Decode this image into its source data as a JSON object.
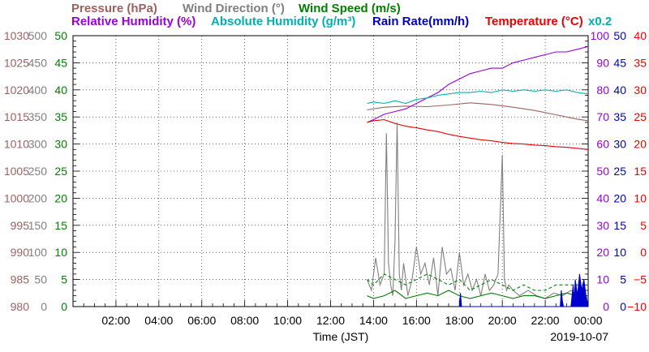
{
  "chart_data": {
    "type": "line",
    "date": "2019-10-07",
    "xlabel": "Time (JST)",
    "x_ticks": [
      "02:00",
      "04:00",
      "06:00",
      "08:00",
      "10:00",
      "12:00",
      "14:00",
      "16:00",
      "18:00",
      "20:00",
      "22:00",
      "00:00"
    ],
    "legend_row1": [
      {
        "text": "Pressure (hPa)",
        "color": "#a06060"
      },
      {
        "text": "Wind Direction (°)",
        "color": "#808080"
      },
      {
        "text": "Wind Speed (m/s)",
        "color": "#008000"
      }
    ],
    "legend_row2": [
      {
        "text": "Relative Humidity (%)",
        "color": "#9900dd"
      },
      {
        "text": "Absolute Humidity (g/m³)",
        "color": "#00b0b0"
      },
      {
        "text": "Rain Rate(mm/h)",
        "color": "#0000cc"
      },
      {
        "text": "Temperature (°C)",
        "color": "#ee0000"
      }
    ],
    "abs_humidity_scale_note": "x0.2",
    "axes": {
      "pressure": {
        "ticks": [
          "1030",
          "1025",
          "1020",
          "1015",
          "1010",
          "1005",
          "1000",
          "995",
          "990",
          "985",
          "980"
        ],
        "ylim": [
          980,
          1030
        ],
        "color": "#a06060"
      },
      "wind_direction": {
        "ticks": [
          "500",
          "450",
          "400",
          "350",
          "300",
          "250",
          "200",
          "150",
          "100",
          "50",
          "0"
        ],
        "ylim": [
          0,
          500
        ],
        "color": "#808080"
      },
      "wind_speed": {
        "ticks": [
          "50",
          "45",
          "40",
          "35",
          "30",
          "25",
          "20",
          "15",
          "10",
          "5",
          "0"
        ],
        "ylim": [
          0,
          50
        ],
        "color": "#008000"
      },
      "relative_humidity": {
        "ticks": [
          "100",
          "90",
          "80",
          "70",
          "60",
          "50",
          "40",
          "30",
          "20",
          "10",
          "0"
        ],
        "ylim": [
          0,
          100
        ],
        "color": "#9900dd"
      },
      "rain_rate": {
        "ticks": [
          "50",
          "45",
          "40",
          "35",
          "30",
          "25",
          "20",
          "15",
          "10",
          "5",
          "0"
        ],
        "ylim": [
          0,
          50
        ],
        "color": "#0000cc"
      },
      "temperature": {
        "ticks": [
          "40",
          "35",
          "30",
          "25",
          "20",
          "15",
          "10",
          "5",
          "0",
          "−5",
          "−10"
        ],
        "ylim": [
          -10,
          40
        ],
        "color": "#ee0000"
      }
    },
    "xlim_hours": [
      0,
      24
    ],
    "series": [
      {
        "name": "Pressure (hPa)",
        "axis": "pressure",
        "color": "#a06060",
        "x": [
          13.7,
          14.5,
          15.5,
          16.5,
          17.5,
          18.5,
          19.5,
          20.5,
          21.5,
          22.5,
          23.5,
          24
        ],
        "y": [
          1016.3,
          1016.8,
          1017.0,
          1016.9,
          1017.2,
          1017.6,
          1017.3,
          1016.8,
          1016.2,
          1015.4,
          1014.6,
          1014.3
        ]
      },
      {
        "name": "Relative Humidity (%)",
        "axis": "relative_humidity",
        "color": "#9900dd",
        "x": [
          13.7,
          14.0,
          14.5,
          15.0,
          15.5,
          16.0,
          16.5,
          17.0,
          17.5,
          18.0,
          18.5,
          19.0,
          19.5,
          20.0,
          20.5,
          21.0,
          21.5,
          22.0,
          22.5,
          23.0,
          23.5,
          24.0
        ],
        "y": [
          68,
          69,
          71,
          72,
          73,
          75,
          77,
          79,
          82,
          84,
          86,
          87,
          88,
          88,
          90,
          91,
          92,
          93,
          94,
          94,
          95,
          96
        ]
      },
      {
        "name": "Absolute Humidity (g/m³)",
        "axis": "relative_humidity",
        "color": "#00b0b0",
        "x": [
          13.7,
          14.0,
          14.5,
          15.0,
          15.5,
          16.0,
          16.5,
          17.0,
          17.5,
          18.0,
          18.5,
          19.0,
          19.5,
          20.0,
          20.5,
          21.0,
          21.5,
          22.0,
          22.5,
          23.0,
          23.5,
          24.0
        ],
        "y": [
          75,
          75.5,
          75,
          76,
          75,
          76.5,
          77,
          78,
          78.5,
          79,
          79,
          79.5,
          79,
          80,
          79.5,
          80,
          79.5,
          80,
          79.5,
          80,
          79,
          78.5
        ]
      },
      {
        "name": "Temperature (°C)",
        "axis": "temperature",
        "color": "#ee0000",
        "x": [
          13.7,
          14.0,
          14.5,
          15.0,
          15.5,
          16.0,
          16.5,
          17.0,
          17.5,
          18.0,
          18.5,
          19.0,
          19.5,
          20.0,
          20.5,
          21.0,
          21.5,
          22.0,
          22.5,
          23.0,
          23.5,
          24.0
        ],
        "y": [
          24,
          24.3,
          24.5,
          23.8,
          23.3,
          23.0,
          22.6,
          22.3,
          21.8,
          21.4,
          21.1,
          20.8,
          20.6,
          20.3,
          20.1,
          20.0,
          19.8,
          19.7,
          19.5,
          19.4,
          19.2,
          19.0
        ]
      },
      {
        "name": "Wind Direction (°)",
        "axis": "wind_direction",
        "color": "#808080",
        "x": [
          13.7,
          13.9,
          14.1,
          14.3,
          14.5,
          14.6,
          14.7,
          14.8,
          14.9,
          15.0,
          15.1,
          15.2,
          15.3,
          15.4,
          15.6,
          15.8,
          16.0,
          16.2,
          16.4,
          16.6,
          16.8,
          17.0,
          17.2,
          17.4,
          17.6,
          17.8,
          18.0,
          18.2,
          18.4,
          18.6,
          18.8,
          19.0,
          19.2,
          19.4,
          19.6,
          19.8,
          20.0,
          20.1,
          20.2,
          20.3,
          20.5,
          20.8,
          21.2,
          21.6,
          22.0,
          22.4,
          22.8,
          23.2,
          23.6,
          24.0
        ],
        "y": [
          50,
          30,
          90,
          40,
          60,
          320,
          80,
          40,
          20,
          120,
          340,
          60,
          30,
          80,
          20,
          50,
          110,
          60,
          80,
          40,
          90,
          20,
          110,
          60,
          70,
          30,
          100,
          40,
          60,
          30,
          50,
          20,
          60,
          30,
          40,
          60,
          280,
          50,
          30,
          40,
          30,
          20,
          30,
          20,
          15,
          25,
          20,
          30,
          20,
          15
        ]
      },
      {
        "name": "Wind Speed (m/s)",
        "axis": "wind_speed",
        "color": "#008000",
        "x": [
          13.7,
          14.0,
          14.5,
          15.0,
          15.5,
          16.0,
          16.5,
          17.0,
          17.5,
          18.0,
          18.5,
          19.0,
          19.5,
          20.0,
          20.5,
          21.0,
          21.5,
          22.0,
          22.5,
          23.0,
          23.5,
          24.0
        ],
        "y": [
          2,
          1.5,
          2,
          3,
          1.5,
          2,
          2.5,
          2,
          3,
          2,
          1.5,
          2,
          2.5,
          2,
          1.5,
          2,
          2,
          1.5,
          2,
          2.5,
          2,
          2
        ]
      },
      {
        "name": "Wind Speed gust",
        "axis": "wind_speed",
        "color": "#008000",
        "dashed": true,
        "x": [
          13.7,
          14.0,
          14.5,
          15.0,
          15.5,
          16.0,
          16.5,
          17.0,
          17.5,
          18.0,
          18.5,
          19.0,
          19.5,
          20.0,
          20.5,
          21.0,
          21.5,
          22.0,
          22.5,
          23.0,
          23.5,
          24.0
        ],
        "y": [
          5,
          4,
          6,
          5,
          4,
          5,
          6,
          5,
          4,
          5,
          3,
          4,
          5,
          4,
          3,
          4,
          3,
          3,
          4,
          4,
          4,
          4
        ]
      },
      {
        "name": "Rain Rate(mm/h)",
        "axis": "rain_rate",
        "color": "#0000cc",
        "fill": true,
        "x": [
          18.0,
          18.05,
          18.1,
          18.15,
          22.7,
          22.75,
          22.8,
          22.85,
          23.2,
          23.3,
          23.35,
          23.4,
          23.5,
          23.6,
          23.7,
          23.8,
          23.9,
          24.0
        ],
        "y": [
          0,
          2.5,
          0,
          0,
          0,
          3,
          1,
          0,
          0,
          4,
          1,
          5,
          2,
          6,
          3,
          5,
          2,
          0
        ]
      }
    ]
  }
}
